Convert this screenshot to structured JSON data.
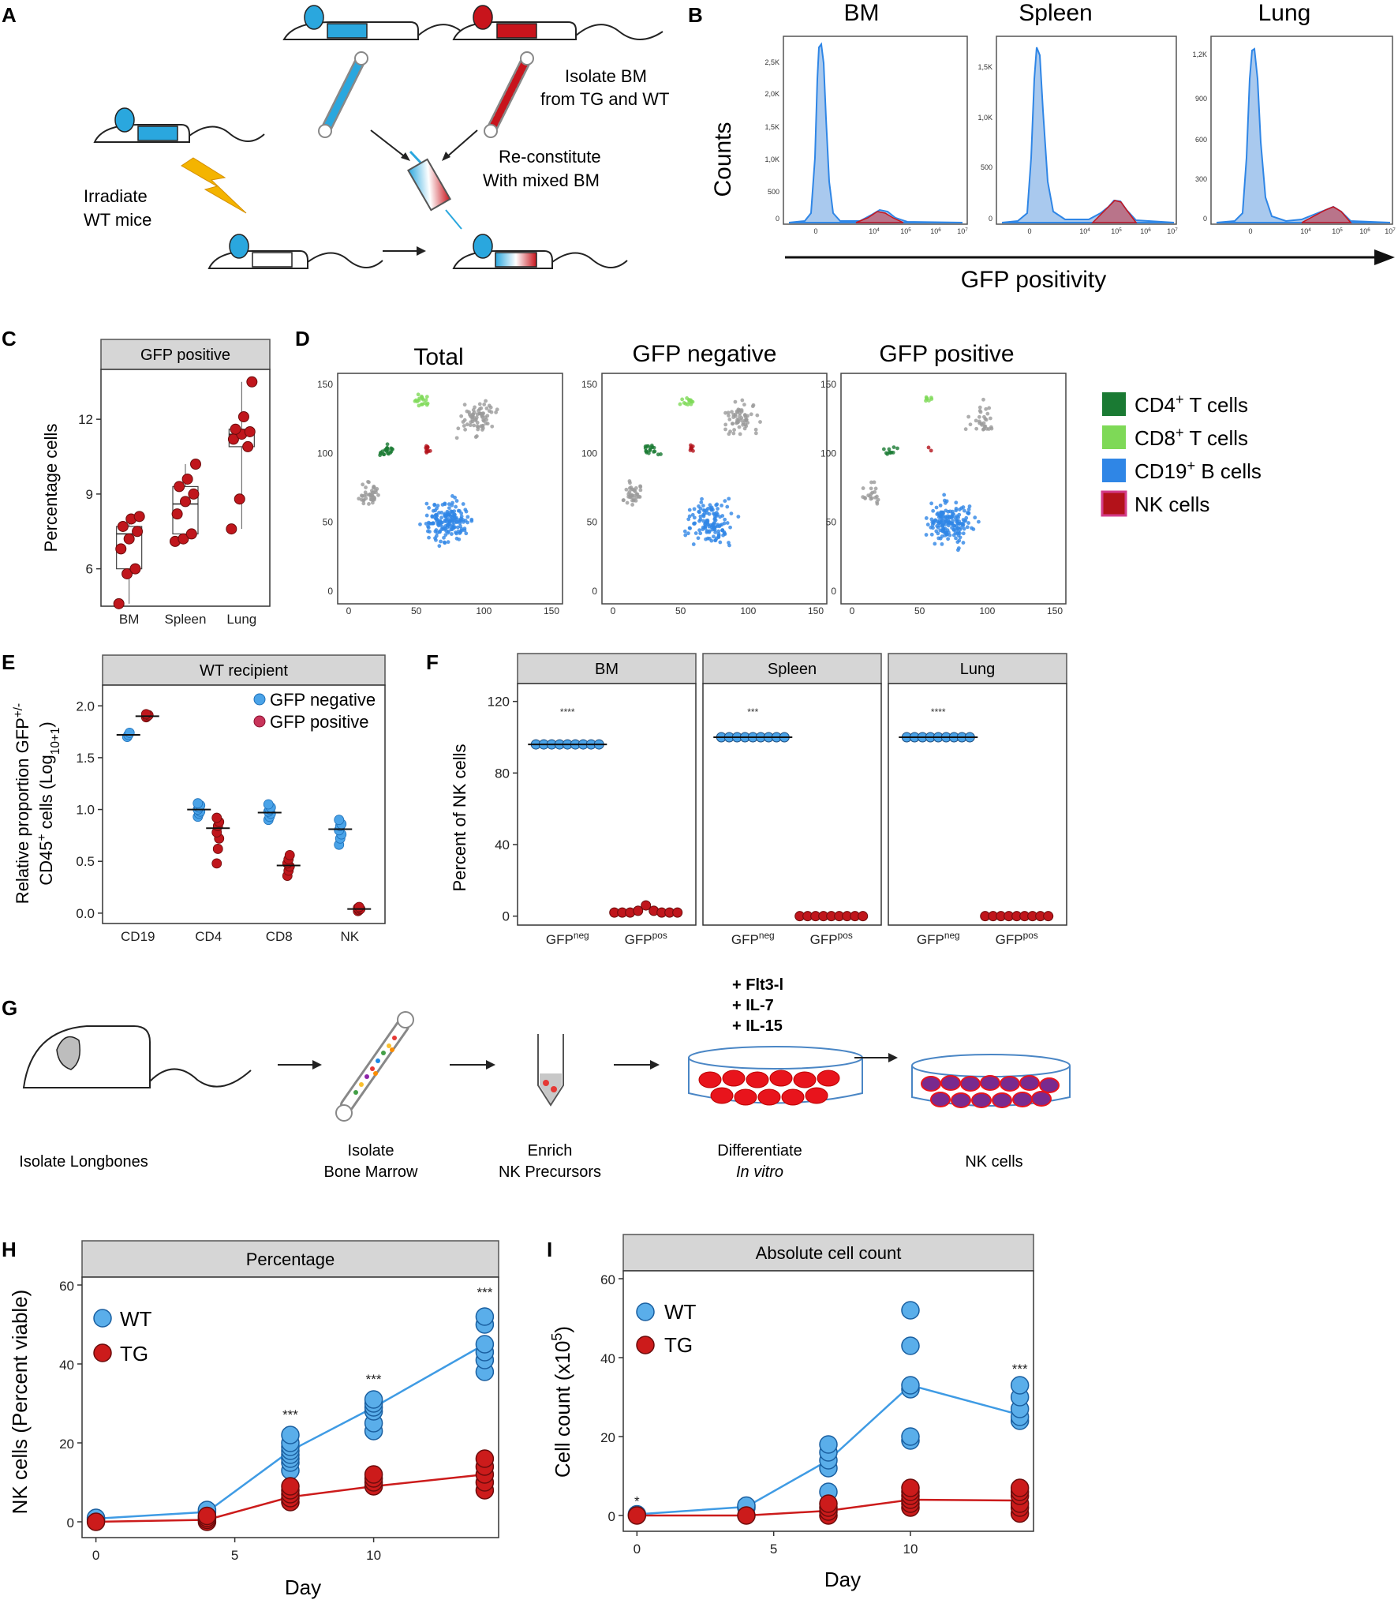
{
  "panels": {
    "A": {
      "label": "A",
      "isolate_text": [
        "Isolate BM",
        "from TG and WT"
      ],
      "reconstitute_text": [
        "Re-constitute",
        "With mixed BM"
      ],
      "irradiate_text": [
        "Irradiate",
        "WT mice"
      ]
    },
    "B": {
      "label": "B",
      "titles": [
        "BM",
        "Spleen",
        "Lung"
      ],
      "ylabel": "Counts",
      "xlabel": "GFP positivity",
      "yticks": [
        [
          "2,5K",
          "2,0K",
          "1,5K",
          "1,0K",
          "500",
          "0"
        ],
        [
          "1,5K",
          "1,0K",
          "500",
          "0"
        ],
        [
          "1,2K",
          "900",
          "600",
          "300",
          "0"
        ]
      ],
      "xticks": [
        "0",
        "10^4",
        "10^5",
        "10^6",
        "10^7"
      ]
    },
    "C": {
      "label": "C",
      "strip": "GFP positive",
      "ylabel": "Percentage cells",
      "yticks": [
        "12",
        "9",
        "6"
      ],
      "categories": [
        "BM",
        "Spleen",
        "Lung"
      ]
    },
    "D": {
      "label": "D",
      "titles": [
        "Total",
        "GFP negative",
        "GFP positive"
      ],
      "axis_ticks": [
        "0",
        "50",
        "100",
        "150"
      ],
      "legend": [
        "CD4+ T cells",
        "CD8+ T cells",
        "CD19+ B cells",
        "NK cells"
      ],
      "legend_colors": [
        "#1a7a33",
        "#7ed957",
        "#2f86e6",
        "#b3121a"
      ]
    },
    "E": {
      "label": "E",
      "strip": "WT recipient",
      "ylabel_1": "Relative proportion GFP+/-",
      "ylabel_2": "CD45+ cells (Log10+1)",
      "categories": [
        "CD19",
        "CD4",
        "CD8",
        "NK"
      ],
      "yticks": [
        "2.0",
        "1.5",
        "1.0",
        "0.5",
        "0.0"
      ],
      "legend": [
        "GFP negative",
        "GFP positive"
      ]
    },
    "F": {
      "label": "F",
      "strips": [
        "BM",
        "Spleen",
        "Lung"
      ],
      "ylabel": "Percent of NK cells",
      "yticks": [
        "120",
        "80",
        "40",
        "0"
      ],
      "xcats": [
        "GFPneg",
        "GFPpos"
      ],
      "signif": [
        "****",
        "***",
        "****"
      ]
    },
    "G": {
      "label": "G",
      "steps": [
        "Isolate Longbones",
        "Isolate",
        "Bone Marrow",
        "Enrich",
        "NK Precursors",
        "Differentiate",
        "In vitro",
        "NK cells"
      ],
      "factors": [
        "+ Flt3-l",
        "+ IL-7",
        "+ IL-15"
      ]
    },
    "H": {
      "label": "H",
      "strip": "Percentage",
      "ylabel": "NK cells (Percent viable)",
      "xlabel": "Day",
      "xticks": [
        "0",
        "5",
        "10"
      ],
      "yticks": [
        "60",
        "40",
        "20",
        "0"
      ],
      "legend": [
        "WT",
        "TG"
      ],
      "signif": "***"
    },
    "I": {
      "label": "I",
      "strip": "Absolute cell count",
      "ylabel": "Cell count (x10^5)",
      "xlabel": "Day",
      "xticks": [
        "0",
        "5",
        "10"
      ],
      "yticks": [
        "60",
        "40",
        "20",
        "0"
      ],
      "legend": [
        "WT",
        "TG"
      ],
      "signif": [
        "*",
        "***"
      ]
    }
  },
  "chart_data": [
    {
      "type": "scatter",
      "title": "GFP positive",
      "ylabel": "Percentage cells",
      "categories": [
        "BM",
        "Spleen",
        "Lung"
      ],
      "series": [
        {
          "name": "BM",
          "values": [
            4.6,
            5.8,
            6.0,
            6.8,
            7.2,
            7.5,
            7.7,
            8.0,
            8.1
          ]
        },
        {
          "name": "Spleen",
          "values": [
            7.1,
            7.2,
            7.4,
            8.2,
            8.7,
            9.0,
            9.3,
            9.6,
            10.2
          ]
        },
        {
          "name": "Lung",
          "values": [
            7.6,
            8.8,
            10.9,
            11.2,
            11.4,
            11.5,
            11.6,
            12.1,
            13.5
          ]
        }
      ],
      "medians": [
        7.4,
        8.6,
        11.4
      ],
      "ylim": [
        4.5,
        14
      ]
    },
    {
      "type": "scatter",
      "title": "WT recipient",
      "categories": [
        "CD19",
        "CD4",
        "CD8",
        "NK"
      ],
      "series": [
        {
          "name": "GFP negative",
          "values": [
            [
              1.7,
              1.72,
              1.74
            ],
            [
              0.93,
              0.96,
              0.98,
              1.0,
              1.02,
              1.04,
              1.06
            ],
            [
              0.9,
              0.93,
              0.96,
              0.98,
              1.0,
              1.02,
              1.05
            ],
            [
              0.66,
              0.72,
              0.76,
              0.8,
              0.84,
              0.86,
              0.9
            ]
          ],
          "means": [
            1.72,
            1.0,
            0.97,
            0.81
          ]
        },
        {
          "name": "GFP positive",
          "values": [
            [
              1.89,
              1.9,
              1.91,
              1.92
            ],
            [
              0.48,
              0.62,
              0.72,
              0.78,
              0.84,
              0.88,
              0.92
            ],
            [
              0.36,
              0.41,
              0.45,
              0.48,
              0.52,
              0.56
            ],
            [
              0.02,
              0.03,
              0.04,
              0.05,
              0.06
            ]
          ],
          "means": [
            1.9,
            0.82,
            0.46,
            0.04
          ]
        }
      ],
      "ylim": [
        -0.1,
        2.2
      ]
    },
    {
      "type": "scatter",
      "title": "Percent of NK cells",
      "facets": [
        "BM",
        "Spleen",
        "Lung"
      ],
      "categories": [
        "GFPneg",
        "GFPpos"
      ],
      "series": [
        {
          "name": "BM",
          "neg": [
            96,
            96,
            96,
            96,
            96,
            96,
            96,
            96,
            96
          ],
          "pos": [
            2,
            2,
            2,
            3,
            6,
            3,
            2,
            2,
            2
          ]
        },
        {
          "name": "Spleen",
          "neg": [
            100,
            100,
            100,
            100,
            100,
            100,
            100,
            100,
            100
          ],
          "pos": [
            0,
            0,
            0,
            0,
            0,
            0,
            0,
            0,
            0
          ]
        },
        {
          "name": "Lung",
          "neg": [
            100,
            100,
            100,
            100,
            100,
            100,
            100,
            100,
            100
          ],
          "pos": [
            0,
            0,
            0,
            0,
            0,
            0,
            0,
            0,
            0
          ]
        }
      ],
      "ylim": [
        -5,
        130
      ]
    },
    {
      "type": "line",
      "title": "Percentage",
      "x": [
        0,
        4,
        7,
        10,
        14
      ],
      "xlabel": "Day",
      "ylabel": "NK cells (Percent viable)",
      "series": [
        {
          "name": "WT",
          "mean": [
            0.8,
            2.5,
            18,
            29,
            45
          ],
          "points": [
            [
              0.5,
              1
            ],
            [
              1.5,
              2.5,
              3
            ],
            [
              13,
              15,
              16,
              17,
              18,
              19,
              20,
              22
            ],
            [
              23,
              25,
              28,
              29,
              30,
              31
            ],
            [
              38,
              41,
              43,
              45,
              50,
              52
            ]
          ]
        },
        {
          "name": "TG",
          "mean": [
            0,
            0.5,
            6.3,
            9,
            12
          ],
          "points": [
            [
              0
            ],
            [
              0,
              0.5,
              1,
              1.5
            ],
            [
              5,
              6,
              7,
              8,
              9
            ],
            [
              9,
              10,
              11,
              12
            ],
            [
              8,
              10,
              12,
              14,
              16
            ]
          ]
        }
      ],
      "ylim": [
        -4,
        62
      ],
      "xlim": [
        -0.5,
        14.5
      ]
    },
    {
      "type": "line",
      "title": "Absolute cell count",
      "x": [
        0,
        4,
        7,
        10,
        14
      ],
      "xlabel": "Day",
      "ylabel": "Cell count (x10^5)",
      "series": [
        {
          "name": "WT",
          "mean": [
            0.3,
            2.2,
            14,
            33,
            25.5
          ],
          "points": [
            [
              0.3
            ],
            [
              2,
              2.5
            ],
            [
              6,
              12,
              14,
              16,
              18
            ],
            [
              19,
              20,
              32,
              33,
              43,
              52
            ],
            [
              24,
              25,
              27,
              30,
              33
            ]
          ]
        },
        {
          "name": "TG",
          "mean": [
            0,
            0,
            1.2,
            4,
            3.8
          ],
          "points": [
            [
              0
            ],
            [
              0
            ],
            [
              0,
              1,
              2,
              3
            ],
            [
              2,
              3,
              4,
              5,
              6,
              7
            ],
            [
              0.5,
              2,
              3,
              5,
              6,
              7
            ]
          ]
        }
      ],
      "ylim": [
        -4,
        62
      ],
      "xlim": [
        -0.5,
        14.5
      ]
    }
  ]
}
